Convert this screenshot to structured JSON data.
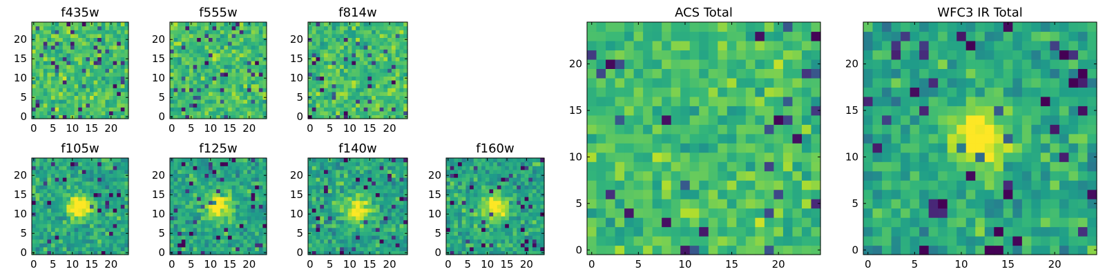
{
  "chart_data": [
    {
      "type": "heatmap",
      "title": "f435w",
      "pixels": 25,
      "xticks": [
        0,
        5,
        10,
        15,
        20
      ],
      "yticks": [
        0,
        5,
        10,
        15,
        20
      ],
      "xlim": [
        0,
        25
      ],
      "ylim": [
        0,
        25
      ],
      "peak": null,
      "colormap": "viridis",
      "seed": 11
    },
    {
      "type": "heatmap",
      "title": "f555w",
      "pixels": 25,
      "xticks": [
        0,
        5,
        10,
        15,
        20
      ],
      "yticks": [
        0,
        5,
        10,
        15,
        20
      ],
      "xlim": [
        0,
        25
      ],
      "ylim": [
        0,
        25
      ],
      "peak": null,
      "colormap": "viridis",
      "seed": 23
    },
    {
      "type": "heatmap",
      "title": "f814w",
      "pixels": 25,
      "xticks": [
        0,
        5,
        10,
        15,
        20
      ],
      "yticks": [
        0,
        5,
        10,
        15,
        20
      ],
      "xlim": [
        0,
        25
      ],
      "ylim": [
        0,
        25
      ],
      "peak": null,
      "colormap": "viridis",
      "seed": 37
    },
    {
      "type": "heatmap",
      "title": "f105w",
      "pixels": 25,
      "xticks": [
        0,
        5,
        10,
        15,
        20
      ],
      "yticks": [
        0,
        5,
        10,
        15,
        20
      ],
      "xlim": [
        0,
        25
      ],
      "ylim": [
        0,
        25
      ],
      "peak": [
        12,
        12
      ],
      "colormap": "viridis",
      "seed": 41
    },
    {
      "type": "heatmap",
      "title": "f125w",
      "pixels": 25,
      "xticks": [
        0,
        5,
        10,
        15,
        20
      ],
      "yticks": [
        0,
        5,
        10,
        15,
        20
      ],
      "xlim": [
        0,
        25
      ],
      "ylim": [
        0,
        25
      ],
      "peak": [
        12,
        12
      ],
      "colormap": "viridis",
      "seed": 53
    },
    {
      "type": "heatmap",
      "title": "f140w",
      "pixels": 25,
      "xticks": [
        0,
        5,
        10,
        15,
        20
      ],
      "yticks": [
        0,
        5,
        10,
        15,
        20
      ],
      "xlim": [
        0,
        25
      ],
      "ylim": [
        0,
        25
      ],
      "peak": [
        12,
        11
      ],
      "colormap": "viridis",
      "seed": 67
    },
    {
      "type": "heatmap",
      "title": "f160w",
      "pixels": 25,
      "xticks": [
        0,
        5,
        10,
        15,
        20
      ],
      "yticks": [
        0,
        5,
        10,
        15,
        20
      ],
      "xlim": [
        0,
        25
      ],
      "ylim": [
        0,
        25
      ],
      "peak": [
        12,
        12
      ],
      "colormap": "viridis",
      "seed": 79
    },
    {
      "type": "heatmap",
      "title": "ACS Total",
      "pixels": 25,
      "xticks": [
        0,
        5,
        10,
        15,
        20
      ],
      "yticks": [
        0,
        5,
        10,
        15,
        20
      ],
      "xlim": [
        0,
        25
      ],
      "ylim": [
        0,
        25
      ],
      "peak": null,
      "colormap": "viridis",
      "seed": 83
    },
    {
      "type": "heatmap",
      "title": "WFC3 IR Total",
      "pixels": 25,
      "xticks": [
        0,
        5,
        10,
        15,
        20
      ],
      "yticks": [
        0,
        5,
        10,
        15,
        20
      ],
      "xlim": [
        0,
        25
      ],
      "ylim": [
        0,
        25
      ],
      "peak": [
        12,
        12
      ],
      "colormap": "viridis",
      "seed": 97
    }
  ]
}
